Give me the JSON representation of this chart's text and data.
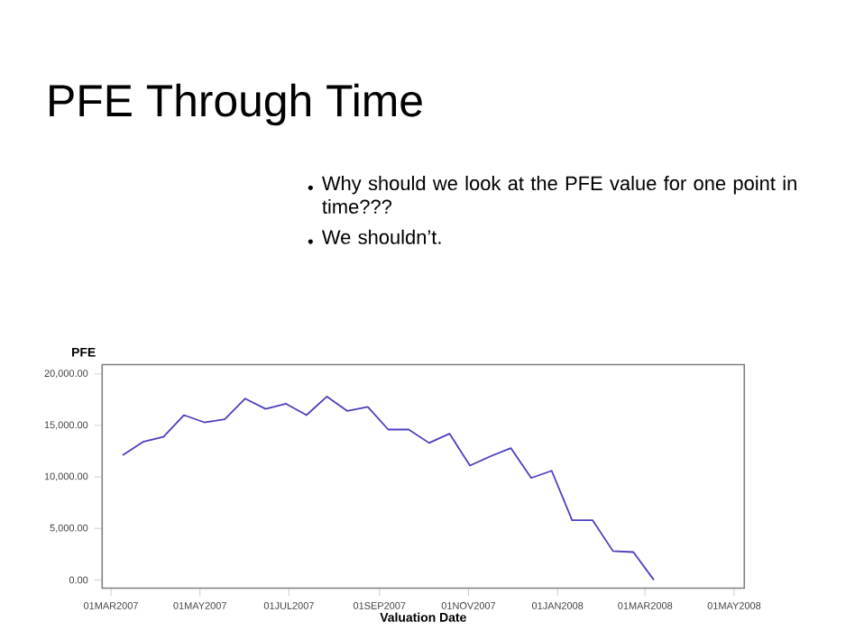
{
  "chart_data": {
    "type": "line",
    "title": "PFE Through Time",
    "annotations": [
      "Why should we look at the PFE value for one point in time???",
      "We shouldn’t."
    ],
    "xlabel": "Valuation Date",
    "ylabel": "PFE",
    "x": [
      "2007-03-09",
      "2007-03-23",
      "2007-04-06",
      "2007-04-20",
      "2007-05-04",
      "2007-05-18",
      "2007-06-01",
      "2007-06-15",
      "2007-06-29",
      "2007-07-13",
      "2007-07-27",
      "2007-08-10",
      "2007-08-24",
      "2007-09-07",
      "2007-09-21",
      "2007-10-05",
      "2007-10-19",
      "2007-11-02",
      "2007-11-16",
      "2007-11-30",
      "2007-12-14",
      "2007-12-28",
      "2008-01-11",
      "2008-01-25",
      "2008-02-08",
      "2008-02-22",
      "2008-03-07"
    ],
    "series": [
      {
        "color": "#4a3fbf",
        "values": [
          12100,
          13400,
          13900,
          16000,
          15300,
          15600,
          17600,
          16600,
          17100,
          16000,
          17800,
          16400,
          16800,
          14600,
          14600,
          13300,
          14200,
          11100,
          12000,
          12800,
          9900,
          10600,
          5800,
          5800,
          2800,
          2700,
          0
        ]
      }
    ],
    "xlim": [
      "2007-02-23",
      "2008-05-08"
    ],
    "xticks": [
      {
        "value": "2007-03-01",
        "label": "01MAR2007"
      },
      {
        "value": "2007-05-01",
        "label": "01MAY2007"
      },
      {
        "value": "2007-07-01",
        "label": "01JUL2007"
      },
      {
        "value": "2007-09-01",
        "label": "01SEP2007"
      },
      {
        "value": "2007-11-01",
        "label": "01NOV2007"
      },
      {
        "value": "2008-01-01",
        "label": "01JAN2008"
      },
      {
        "value": "2008-03-01",
        "label": "01MAR2008"
      },
      {
        "value": "2008-05-01",
        "label": "01MAY2008"
      }
    ],
    "ylim": [
      -800,
      20900
    ],
    "yticks": [
      {
        "value": 0,
        "label": "0.00"
      },
      {
        "value": 5000,
        "label": "5,000.00"
      },
      {
        "value": 10000,
        "label": "10,000.00"
      },
      {
        "value": 15000,
        "label": "15,000.00"
      },
      {
        "value": 20000,
        "label": "20,000.00"
      }
    ],
    "grid": false,
    "marker": "none",
    "line_style": "solid"
  }
}
